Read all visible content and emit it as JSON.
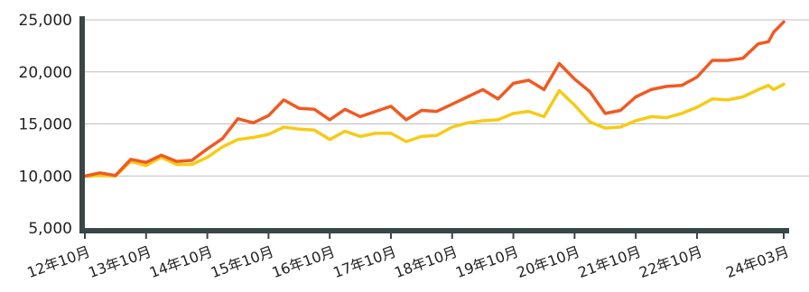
{
  "chart_data": {
    "type": "line",
    "title": "",
    "xlabel": "",
    "ylabel": "",
    "ylim": [
      5000,
      25000
    ],
    "y_ticks": [
      "5,000",
      "10,000",
      "15,000",
      "20,000",
      "25,000"
    ],
    "y_tick_values": [
      5000,
      10000,
      15000,
      20000,
      25000
    ],
    "grid": true,
    "x_tick_labels": [
      "12年10月",
      "13年10月",
      "14年10月",
      "15年10月",
      "16年10月",
      "17年10月",
      "18年10月",
      "19年10月",
      "20年10月",
      "21年10月",
      "22年10月",
      "24年03月"
    ],
    "x_tick_dates": [
      "2012-10",
      "2013-10",
      "2014-10",
      "2015-10",
      "2016-10",
      "2017-10",
      "2018-10",
      "2019-10",
      "2020-10",
      "2021-10",
      "2022-10",
      "2024-03"
    ],
    "series": [
      {
        "color": "#f05a22",
        "points": [
          [
            "2012-10",
            10000
          ],
          [
            "2013-01",
            10300
          ],
          [
            "2013-04",
            10050
          ],
          [
            "2013-07",
            11600
          ],
          [
            "2013-10",
            11300
          ],
          [
            "2014-01",
            12000
          ],
          [
            "2014-04",
            11400
          ],
          [
            "2014-07",
            11500
          ],
          [
            "2014-10",
            12600
          ],
          [
            "2015-01",
            13600
          ],
          [
            "2015-04",
            15500
          ],
          [
            "2015-07",
            15100
          ],
          [
            "2015-10",
            15800
          ],
          [
            "2016-01",
            17300
          ],
          [
            "2016-04",
            16500
          ],
          [
            "2016-07",
            16400
          ],
          [
            "2016-10",
            15400
          ],
          [
            "2017-01",
            16400
          ],
          [
            "2017-04",
            15700
          ],
          [
            "2017-07",
            16200
          ],
          [
            "2017-10",
            16700
          ],
          [
            "2018-01",
            15400
          ],
          [
            "2018-04",
            16300
          ],
          [
            "2018-07",
            16200
          ],
          [
            "2018-10",
            16900
          ],
          [
            "2019-01",
            17600
          ],
          [
            "2019-04",
            18300
          ],
          [
            "2019-07",
            17400
          ],
          [
            "2019-10",
            18900
          ],
          [
            "2020-01",
            19200
          ],
          [
            "2020-04",
            18300
          ],
          [
            "2020-07",
            20800
          ],
          [
            "2020-10",
            19300
          ],
          [
            "2021-01",
            18100
          ],
          [
            "2021-04",
            16000
          ],
          [
            "2021-07",
            16300
          ],
          [
            "2021-10",
            17600
          ],
          [
            "2022-01",
            18300
          ],
          [
            "2022-04",
            18600
          ],
          [
            "2022-07",
            18700
          ],
          [
            "2022-10",
            19500
          ],
          [
            "2023-01",
            21100
          ],
          [
            "2023-04",
            21100
          ],
          [
            "2023-07",
            21300
          ],
          [
            "2023-10",
            22700
          ],
          [
            "2023-12",
            22900
          ],
          [
            "2024-01",
            23800
          ],
          [
            "2024-03",
            24800
          ]
        ]
      },
      {
        "color": "#f6cb16",
        "points": [
          [
            "2012-10",
            9950
          ],
          [
            "2013-01",
            10050
          ],
          [
            "2013-04",
            10000
          ],
          [
            "2013-07",
            11400
          ],
          [
            "2013-10",
            11000
          ],
          [
            "2014-01",
            11800
          ],
          [
            "2014-04",
            11100
          ],
          [
            "2014-07",
            11100
          ],
          [
            "2014-10",
            11800
          ],
          [
            "2015-01",
            12800
          ],
          [
            "2015-04",
            13500
          ],
          [
            "2015-07",
            13700
          ],
          [
            "2015-10",
            14000
          ],
          [
            "2016-01",
            14700
          ],
          [
            "2016-04",
            14500
          ],
          [
            "2016-07",
            14400
          ],
          [
            "2016-10",
            13500
          ],
          [
            "2017-01",
            14300
          ],
          [
            "2017-04",
            13800
          ],
          [
            "2017-07",
            14100
          ],
          [
            "2017-10",
            14100
          ],
          [
            "2018-01",
            13300
          ],
          [
            "2018-04",
            13800
          ],
          [
            "2018-07",
            13900
          ],
          [
            "2018-10",
            14700
          ],
          [
            "2019-01",
            15100
          ],
          [
            "2019-04",
            15300
          ],
          [
            "2019-07",
            15400
          ],
          [
            "2019-10",
            16000
          ],
          [
            "2020-01",
            16200
          ],
          [
            "2020-04",
            15700
          ],
          [
            "2020-07",
            18200
          ],
          [
            "2020-10",
            16800
          ],
          [
            "2021-01",
            15200
          ],
          [
            "2021-04",
            14600
          ],
          [
            "2021-07",
            14700
          ],
          [
            "2021-10",
            15300
          ],
          [
            "2022-01",
            15700
          ],
          [
            "2022-04",
            15600
          ],
          [
            "2022-07",
            16000
          ],
          [
            "2022-10",
            16600
          ],
          [
            "2023-01",
            17400
          ],
          [
            "2023-04",
            17300
          ],
          [
            "2023-07",
            17600
          ],
          [
            "2023-10",
            18300
          ],
          [
            "2023-12",
            18700
          ],
          [
            "2024-01",
            18300
          ],
          [
            "2024-03",
            18800
          ]
        ]
      }
    ]
  }
}
